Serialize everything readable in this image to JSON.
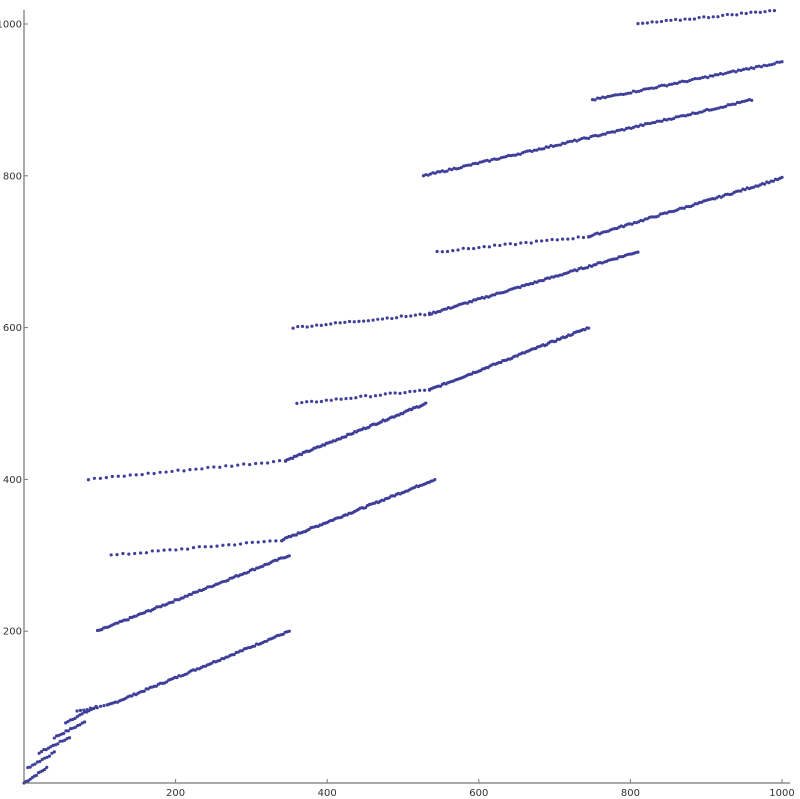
{
  "chart_data": {
    "type": "scatter",
    "title": "",
    "xlabel": "",
    "ylabel": "",
    "xlim": [
      0,
      1000
    ],
    "ylim": [
      0,
      1020
    ],
    "grid": false,
    "legend": "none",
    "marker_color": "#3f3f9a",
    "x_ticks": [
      200,
      400,
      600,
      800,
      1000
    ],
    "y_ticks": [
      200,
      400,
      600,
      800,
      1000
    ],
    "x_tick_labels": [
      "200",
      "400",
      "600",
      "800",
      "1000"
    ],
    "y_tick_labels": [
      "200",
      "400",
      "600",
      "800",
      "1000"
    ],
    "series": [
      {
        "segments": [
          {
            "x0": 0,
            "y0": 0,
            "x1": 30,
            "y1": 20,
            "n": 12
          },
          {
            "x0": 5,
            "y0": 20,
            "x1": 40,
            "y1": 40,
            "n": 12
          },
          {
            "x0": 20,
            "y0": 40,
            "x1": 60,
            "y1": 60,
            "n": 14
          },
          {
            "x0": 40,
            "y0": 60,
            "x1": 80,
            "y1": 80,
            "n": 14
          },
          {
            "x0": 55,
            "y0": 80,
            "x1": 95,
            "y1": 100,
            "n": 14
          },
          {
            "x0": 70,
            "y0": 95,
            "x1": 110,
            "y1": 102,
            "n": 10
          },
          {
            "x0": 110,
            "y0": 102,
            "x1": 350,
            "y1": 200,
            "n": 90
          },
          {
            "x0": 97,
            "y0": 200,
            "x1": 350,
            "y1": 300,
            "n": 95
          },
          {
            "x0": 115,
            "y0": 300,
            "x1": 340,
            "y1": 320,
            "n": 30
          },
          {
            "x0": 340,
            "y0": 320,
            "x1": 542,
            "y1": 400,
            "n": 85
          },
          {
            "x0": 85,
            "y0": 400,
            "x1": 345,
            "y1": 425,
            "n": 34
          },
          {
            "x0": 345,
            "y0": 425,
            "x1": 530,
            "y1": 500,
            "n": 80
          },
          {
            "x0": 360,
            "y0": 500,
            "x1": 535,
            "y1": 518,
            "n": 28
          },
          {
            "x0": 535,
            "y0": 518,
            "x1": 745,
            "y1": 600,
            "n": 88
          },
          {
            "x0": 355,
            "y0": 600,
            "x1": 535,
            "y1": 618,
            "n": 30
          },
          {
            "x0": 535,
            "y0": 618,
            "x1": 810,
            "y1": 700,
            "n": 100
          },
          {
            "x0": 545,
            "y0": 700,
            "x1": 745,
            "y1": 720,
            "n": 30
          },
          {
            "x0": 745,
            "y0": 720,
            "x1": 1000,
            "y1": 797,
            "n": 90
          },
          {
            "x0": 527,
            "y0": 800,
            "x1": 960,
            "y1": 900,
            "n": 140
          },
          {
            "x0": 750,
            "y0": 900,
            "x1": 1000,
            "y1": 950,
            "n": 75
          },
          {
            "x0": 810,
            "y0": 1000,
            "x1": 990,
            "y1": 1018,
            "n": 30
          }
        ]
      }
    ]
  }
}
